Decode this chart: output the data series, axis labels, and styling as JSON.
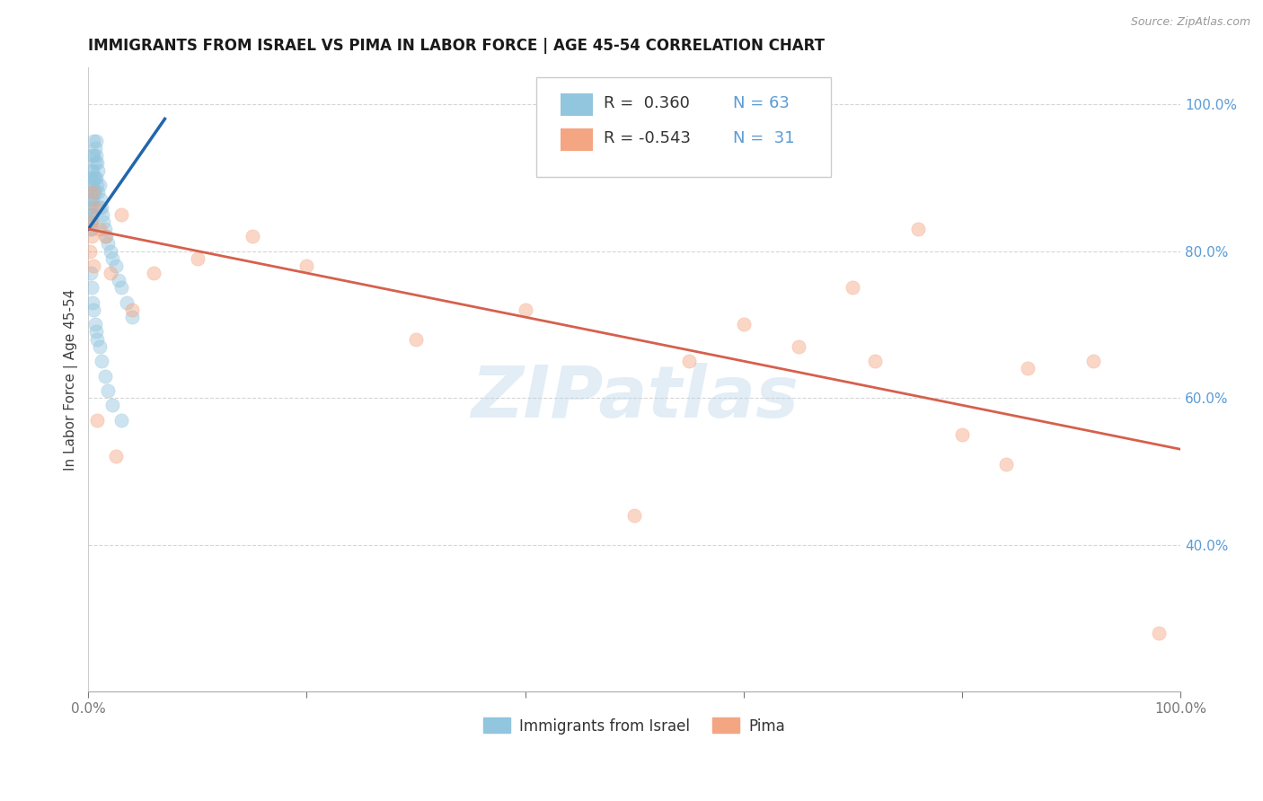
{
  "title": "IMMIGRANTS FROM ISRAEL VS PIMA IN LABOR FORCE | AGE 45-54 CORRELATION CHART",
  "source_text": "Source: ZipAtlas.com",
  "ylabel": "In Labor Force | Age 45-54",
  "xlim": [
    0.0,
    1.0
  ],
  "ylim": [
    0.2,
    1.05
  ],
  "xticks": [
    0.0,
    0.2,
    0.4,
    0.6,
    0.8,
    1.0
  ],
  "xticklabels": [
    "0.0%",
    "",
    "",
    "",
    "",
    "100.0%"
  ],
  "yticks": [
    0.4,
    0.6,
    0.8,
    1.0
  ],
  "yticklabels": [
    "40.0%",
    "60.0%",
    "80.0%",
    "100.0%"
  ],
  "blue_color": "#92c5de",
  "pink_color": "#f4a582",
  "blue_line_color": "#2166ac",
  "pink_line_color": "#d6604d",
  "watermark": "ZIPatlas",
  "blue_x": [
    0.001,
    0.001,
    0.001,
    0.002,
    0.002,
    0.002,
    0.002,
    0.002,
    0.003,
    0.003,
    0.003,
    0.003,
    0.003,
    0.003,
    0.004,
    0.004,
    0.004,
    0.004,
    0.004,
    0.005,
    0.005,
    0.005,
    0.005,
    0.006,
    0.006,
    0.006,
    0.006,
    0.007,
    0.007,
    0.007,
    0.008,
    0.008,
    0.009,
    0.009,
    0.01,
    0.01,
    0.011,
    0.012,
    0.013,
    0.014,
    0.015,
    0.016,
    0.018,
    0.02,
    0.022,
    0.025,
    0.028,
    0.03,
    0.035,
    0.04,
    0.002,
    0.003,
    0.004,
    0.005,
    0.006,
    0.007,
    0.008,
    0.01,
    0.012,
    0.015,
    0.018,
    0.022,
    0.03
  ],
  "blue_y": [
    0.87,
    0.86,
    0.85,
    0.9,
    0.88,
    0.86,
    0.84,
    0.83,
    0.91,
    0.89,
    0.87,
    0.85,
    0.84,
    0.83,
    0.93,
    0.91,
    0.89,
    0.87,
    0.85,
    0.95,
    0.93,
    0.9,
    0.88,
    0.94,
    0.92,
    0.9,
    0.88,
    0.95,
    0.93,
    0.9,
    0.92,
    0.89,
    0.91,
    0.88,
    0.89,
    0.86,
    0.87,
    0.86,
    0.85,
    0.84,
    0.83,
    0.82,
    0.81,
    0.8,
    0.79,
    0.78,
    0.76,
    0.75,
    0.73,
    0.71,
    0.77,
    0.75,
    0.73,
    0.72,
    0.7,
    0.69,
    0.68,
    0.67,
    0.65,
    0.63,
    0.61,
    0.59,
    0.57
  ],
  "pink_x": [
    0.001,
    0.002,
    0.003,
    0.004,
    0.005,
    0.006,
    0.008,
    0.01,
    0.015,
    0.02,
    0.025,
    0.03,
    0.04,
    0.06,
    0.1,
    0.15,
    0.2,
    0.3,
    0.4,
    0.5,
    0.55,
    0.6,
    0.65,
    0.7,
    0.72,
    0.76,
    0.8,
    0.84,
    0.86,
    0.92,
    0.98
  ],
  "pink_y": [
    0.8,
    0.84,
    0.82,
    0.88,
    0.78,
    0.86,
    0.57,
    0.83,
    0.82,
    0.77,
    0.52,
    0.85,
    0.72,
    0.77,
    0.79,
    0.82,
    0.78,
    0.68,
    0.72,
    0.44,
    0.65,
    0.7,
    0.67,
    0.75,
    0.65,
    0.83,
    0.55,
    0.51,
    0.64,
    0.65,
    0.28
  ],
  "blue_trendline_x": [
    0.0,
    0.07
  ],
  "blue_trendline_y": [
    0.83,
    0.98
  ],
  "pink_trendline_x": [
    0.0,
    1.0
  ],
  "pink_trendline_y": [
    0.83,
    0.53
  ],
  "background_color": "#ffffff",
  "grid_color": "#cccccc",
  "title_fontsize": 12,
  "axis_label_fontsize": 11,
  "tick_fontsize": 11,
  "scatter_size": 120,
  "scatter_alpha": 0.45
}
